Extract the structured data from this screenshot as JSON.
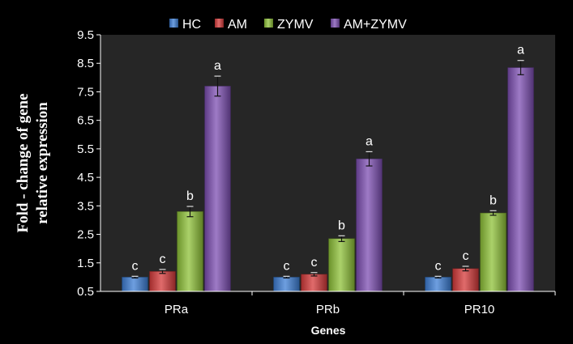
{
  "chart_data": {
    "type": "bar",
    "title": "",
    "xlabel": "Genes",
    "ylabel": "Fold - change of gene relative expression",
    "ylim": [
      0.5,
      9.5
    ],
    "yticks": [
      "0.5",
      "1.5",
      "2.5",
      "3.5",
      "4.5",
      "5.5",
      "6.5",
      "7.5",
      "8.5",
      "9.5"
    ],
    "categories": [
      "PRa",
      "PRb",
      "PR10"
    ],
    "legend_position": "top",
    "grid": false,
    "series": [
      {
        "name": "HC",
        "color": "#3e7fd6",
        "values": [
          1.0,
          1.0,
          1.0
        ],
        "errors": [
          0.03,
          0.03,
          0.03
        ],
        "labels": [
          "c",
          "c",
          "c"
        ]
      },
      {
        "name": "AM",
        "color": "#d63a3a",
        "values": [
          1.2,
          1.1,
          1.3
        ],
        "errors": [
          0.07,
          0.06,
          0.08
        ],
        "labels": [
          "c",
          "c",
          "c"
        ]
      },
      {
        "name": "ZYMV",
        "color": "#8fc238",
        "values": [
          3.3,
          2.35,
          3.25
        ],
        "errors": [
          0.18,
          0.1,
          0.08
        ],
        "labels": [
          "b",
          "b",
          "b"
        ]
      },
      {
        "name": "AM+ZYMV",
        "color": "#7d4fb3",
        "values": [
          7.7,
          5.15,
          8.35
        ],
        "errors": [
          0.35,
          0.25,
          0.25
        ],
        "labels": [
          "a",
          "a",
          "a"
        ]
      }
    ]
  }
}
